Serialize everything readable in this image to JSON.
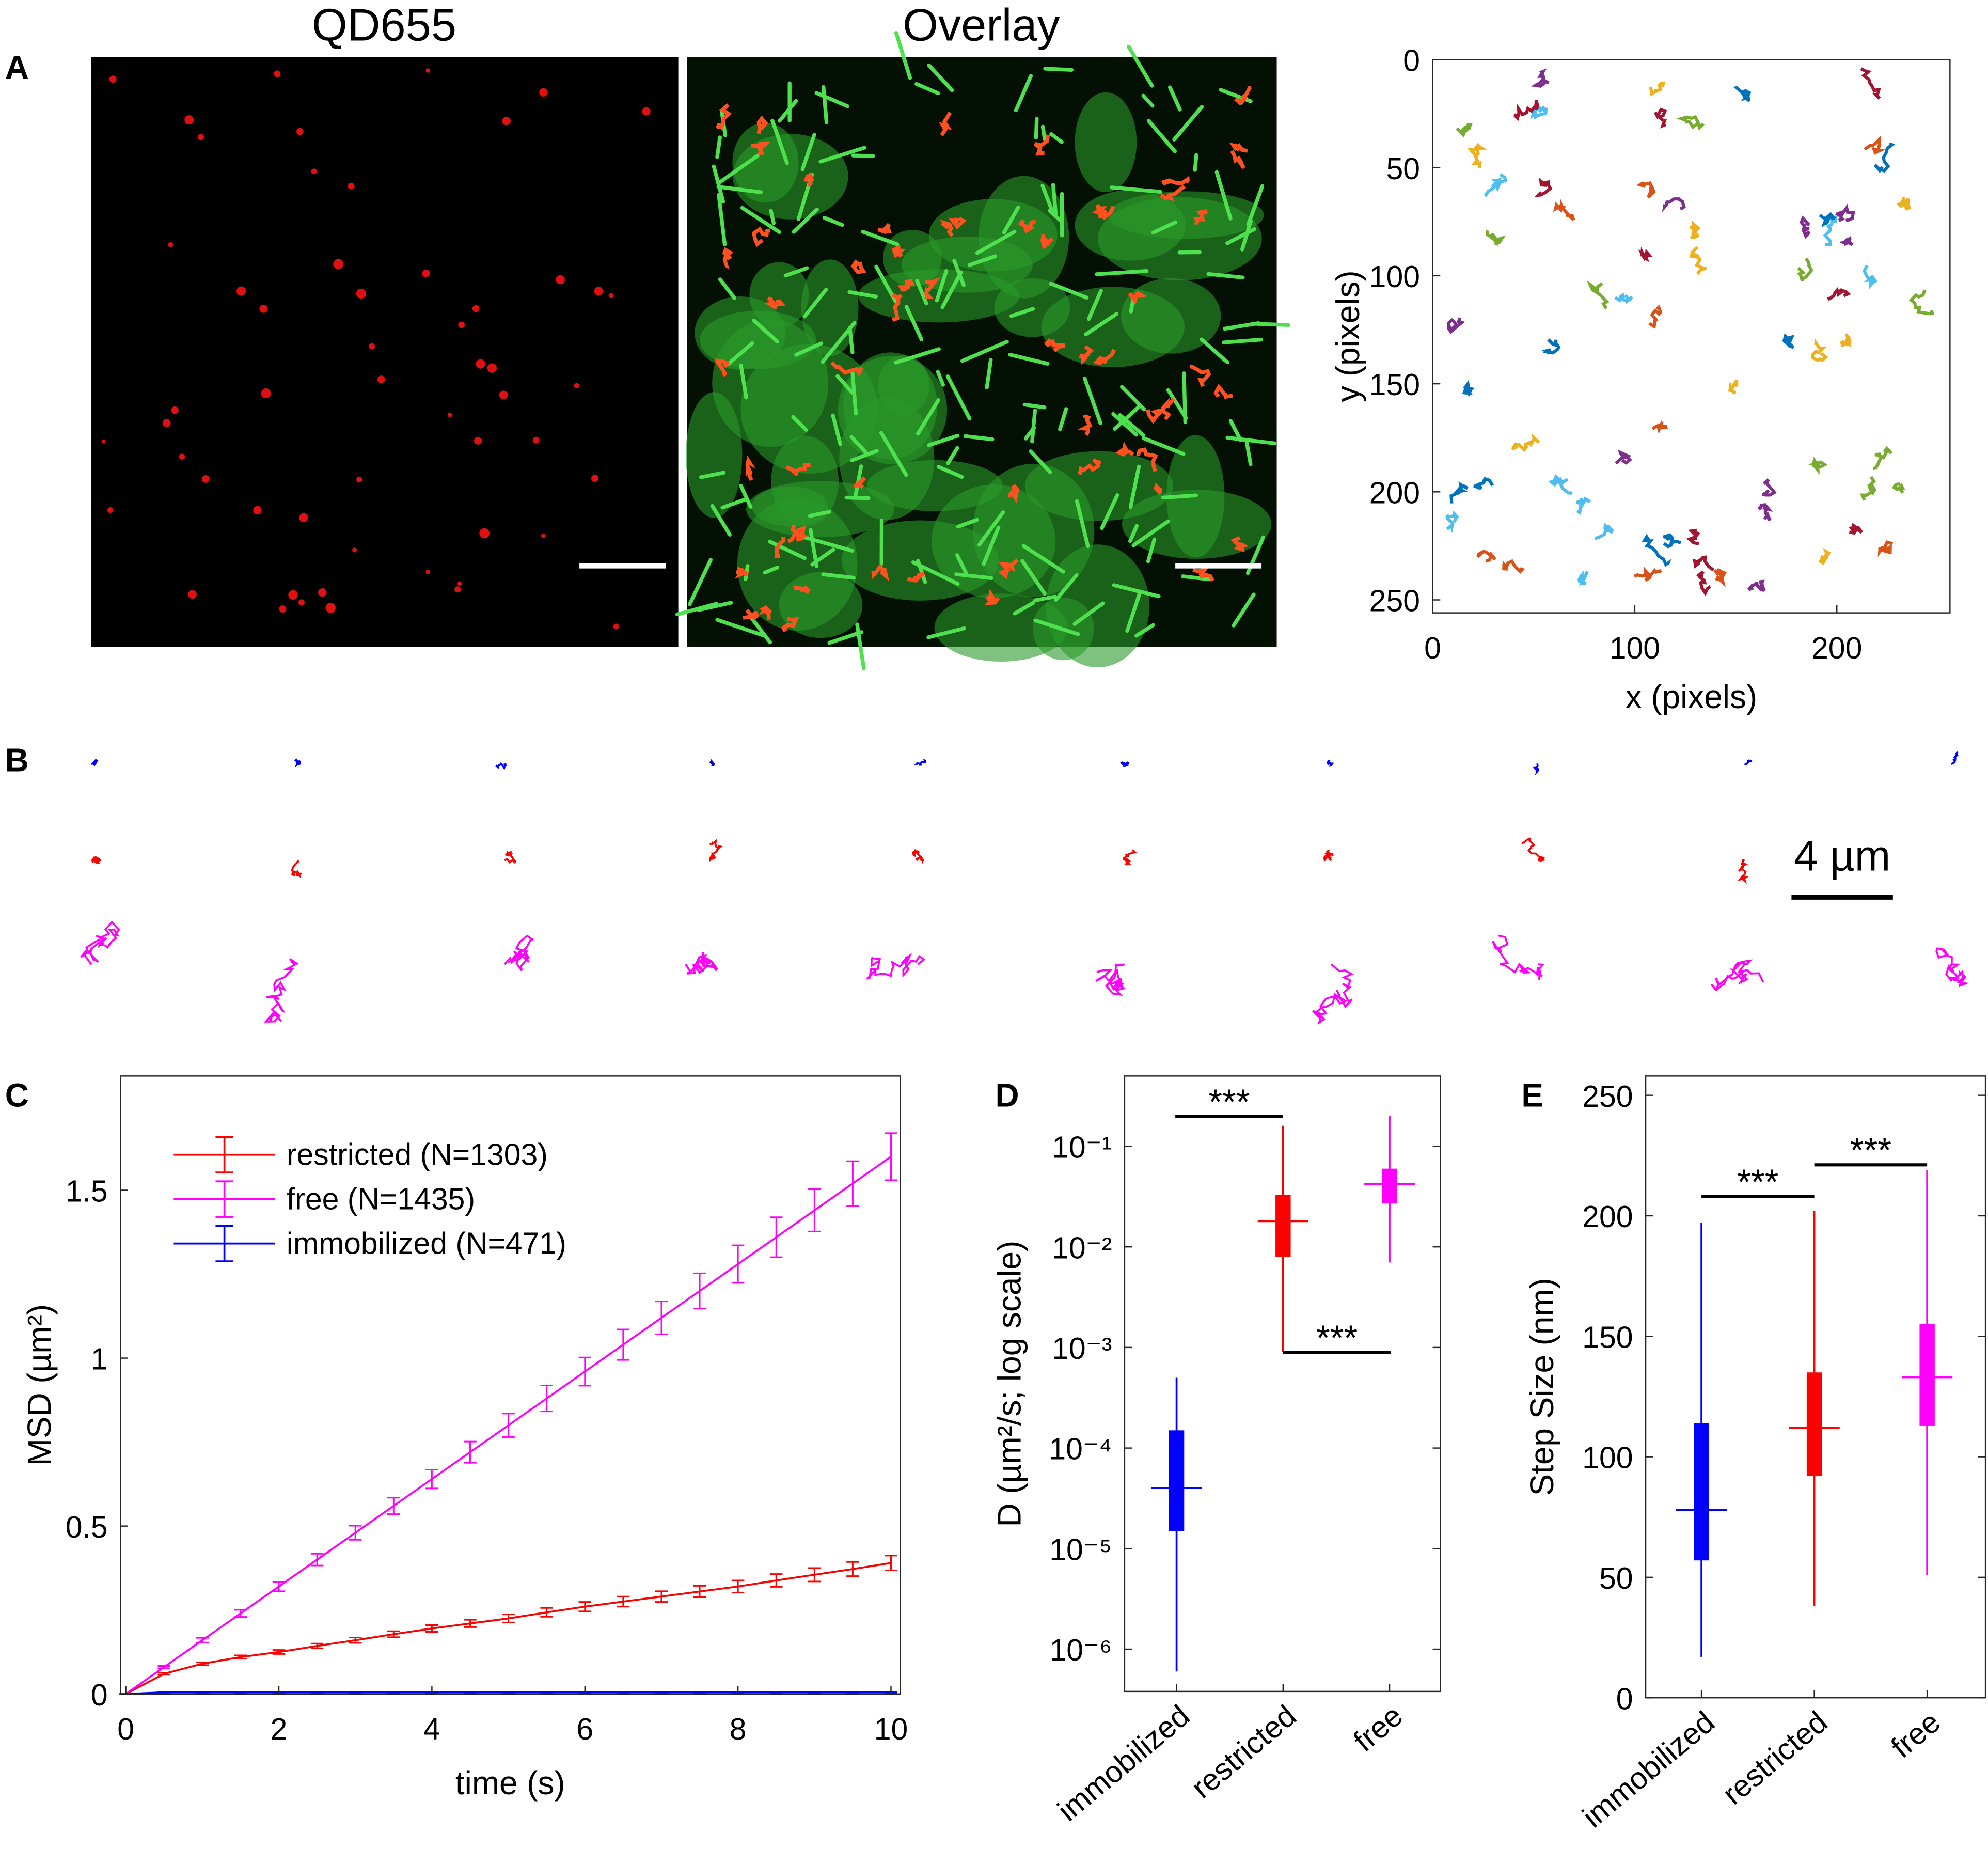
{
  "panel_labels": [
    "A",
    "B",
    "C",
    "D",
    "E"
  ],
  "images": [
    {
      "title": "QD655"
    },
    {
      "title": "Overlay"
    }
  ],
  "scale_bar": "4 µm",
  "chart_data": [
    {
      "type": "trajectory",
      "xlabel": "x (pixels)",
      "ylabel": "y (pixels)",
      "xlim": [
        0,
        256
      ],
      "ylim": [
        0,
        256
      ],
      "y_reversed": true,
      "xticks": [
        0,
        100,
        200
      ],
      "yticks": [
        0,
        50,
        100,
        150,
        200,
        250
      ]
    },
    {
      "type": "line",
      "xlabel": "time (s)",
      "ylabel": "MSD (µm²)",
      "xlim": [
        -0.07,
        10.12
      ],
      "ylim": [
        0,
        1.84
      ],
      "xticks": [
        0,
        2,
        4,
        6,
        8,
        10
      ],
      "yticks": [
        0,
        0.5,
        1,
        1.5
      ],
      "legend": "upper left",
      "x": [
        0,
        0.5,
        1,
        1.5,
        2,
        2.5,
        3,
        3.5,
        4,
        4.5,
        5,
        5.5,
        6,
        6.5,
        7,
        7.5,
        8,
        8.5,
        9,
        9.5,
        10
      ],
      "series": [
        {
          "name": "restricted (N=1303)",
          "color": "#ff0000",
          "values": [
            0,
            0.06,
            0.09,
            0.11,
            0.125,
            0.143,
            0.16,
            0.178,
            0.195,
            0.21,
            0.225,
            0.243,
            0.26,
            0.275,
            0.29,
            0.305,
            0.32,
            0.338,
            0.355,
            0.372,
            0.39
          ],
          "errors": [
            0,
            0.003,
            0.004,
            0.005,
            0.006,
            0.007,
            0.008,
            0.009,
            0.01,
            0.011,
            0.012,
            0.013,
            0.014,
            0.015,
            0.016,
            0.017,
            0.018,
            0.019,
            0.02,
            0.021,
            0.022
          ]
        },
        {
          "name": "free (N=1435)",
          "color": "#ff00ff",
          "values": [
            0,
            0.08,
            0.16,
            0.24,
            0.32,
            0.4,
            0.48,
            0.56,
            0.64,
            0.72,
            0.8,
            0.88,
            0.96,
            1.04,
            1.12,
            1.2,
            1.28,
            1.36,
            1.44,
            1.52,
            1.6
          ],
          "errors": [
            0,
            0.0035,
            0.007,
            0.0105,
            0.014,
            0.0175,
            0.021,
            0.0245,
            0.028,
            0.0315,
            0.035,
            0.0385,
            0.042,
            0.0455,
            0.049,
            0.0525,
            0.056,
            0.0595,
            0.063,
            0.0665,
            0.07
          ]
        },
        {
          "name": "immobilized (N=471)",
          "color": "#0000ff",
          "values": [
            0,
            0.005,
            0.005,
            0.005,
            0.005,
            0.005,
            0.005,
            0.005,
            0.005,
            0.005,
            0.005,
            0.005,
            0.005,
            0.005,
            0.005,
            0.005,
            0.005,
            0.005,
            0.005,
            0.005,
            0.005
          ],
          "errors": [
            0,
            0.001,
            0.001,
            0.001,
            0.001,
            0.001,
            0.001,
            0.001,
            0.001,
            0.001,
            0.001,
            0.001,
            0.001,
            0.001,
            0.001,
            0.001,
            0.001,
            0.001,
            0.001,
            0.001,
            0.001
          ]
        }
      ]
    },
    {
      "type": "box",
      "log": true,
      "ylabel": "D (µm²/s; log scale)",
      "ylim": [
        3.8e-07,
        0.5
      ],
      "yticks": [
        {
          "value": 1e-06,
          "label": "10⁻⁶"
        },
        {
          "value": 1e-05,
          "label": "10⁻⁵"
        },
        {
          "value": 0.0001,
          "label": "10⁻⁴"
        },
        {
          "value": 0.001,
          "label": "10⁻³"
        },
        {
          "value": 0.01,
          "label": "10⁻²"
        },
        {
          "value": 0.1,
          "label": "10⁻¹"
        }
      ],
      "categories": [
        "immobilized",
        "restricted",
        "free"
      ],
      "boxes": [
        {
          "color": "#0000ff",
          "whisker_low": 6e-07,
          "q1": 1.5e-05,
          "median": 4e-05,
          "q3": 0.00015,
          "whisker_high": 0.0005
        },
        {
          "color": "#ff0000",
          "whisker_low": 0.0009,
          "q1": 0.008,
          "median": 0.018,
          "q3": 0.033,
          "whisker_high": 0.16
        },
        {
          "color": "#ff00ff",
          "whisker_low": 0.007,
          "q1": 0.027,
          "median": 0.042,
          "q3": 0.06,
          "whisker_high": 0.2
        }
      ],
      "annotations": [
        "***",
        "***"
      ]
    },
    {
      "type": "box",
      "log": false,
      "ylabel": "Step Size (nm)",
      "ylim": [
        0,
        258
      ],
      "yticks": [
        0,
        50,
        100,
        150,
        200,
        250
      ],
      "categories": [
        "immobilized",
        "restricted",
        "free"
      ],
      "boxes": [
        {
          "color": "#0000ff",
          "whisker_low": 17,
          "q1": 57,
          "median": 78,
          "q3": 114,
          "whisker_high": 197
        },
        {
          "color": "#ff0000",
          "whisker_low": 38,
          "q1": 92,
          "median": 112,
          "q3": 135,
          "whisker_high": 202
        },
        {
          "color": "#ff00ff",
          "whisker_low": 51,
          "q1": 113,
          "median": 133,
          "q3": 155,
          "whisker_high": 219
        }
      ],
      "annotations": [
        "***",
        "***"
      ]
    }
  ]
}
